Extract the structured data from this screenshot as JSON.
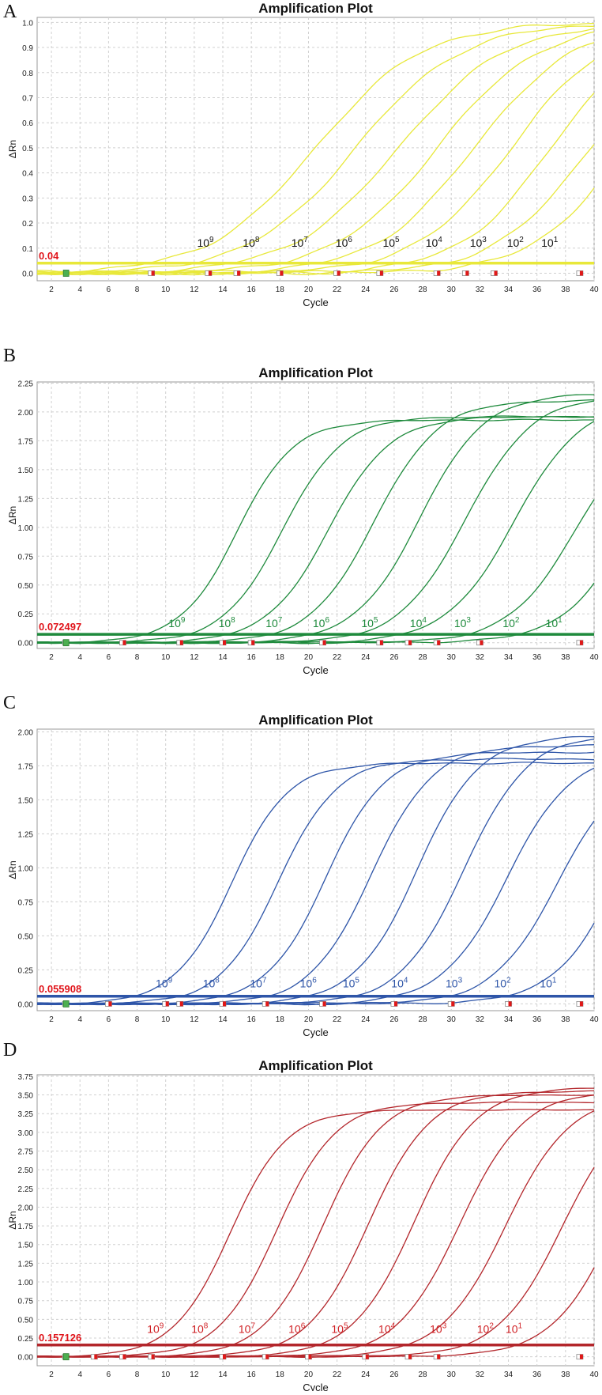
{
  "chart_data": [
    {
      "panel": "A",
      "type": "line",
      "title": "Amplification Plot",
      "xlabel": "Cycle",
      "ylabel": "ΔRn",
      "color": "#e8e83a",
      "label_color": "#111111",
      "threshold": 0.04,
      "threshold_label": "0.04",
      "ylim": [
        -0.03,
        1.02
      ],
      "yticks": [
        "0.0",
        "0.1",
        "0.2",
        "0.3",
        "0.4",
        "0.5",
        "0.6",
        "0.7",
        "0.8",
        "0.9",
        "1.0"
      ],
      "ytick_values": [
        0,
        0.1,
        0.2,
        0.3,
        0.4,
        0.5,
        0.6,
        0.7,
        0.8,
        0.9,
        1.0
      ],
      "xlim": [
        1,
        40
      ],
      "xticks": [
        "2",
        "4",
        "6",
        "8",
        "10",
        "12",
        "14",
        "16",
        "18",
        "20",
        "22",
        "24",
        "26",
        "28",
        "30",
        "32",
        "34",
        "36",
        "38",
        "40"
      ],
      "dilution_labels": [
        {
          "base": "10",
          "exp": "9",
          "x": 12.2
        },
        {
          "base": "10",
          "exp": "8",
          "x": 15.4
        },
        {
          "base": "10",
          "exp": "7",
          "x": 18.8
        },
        {
          "base": "10",
          "exp": "6",
          "x": 21.9
        },
        {
          "base": "10",
          "exp": "5",
          "x": 25.2
        },
        {
          "base": "10",
          "exp": "4",
          "x": 28.2
        },
        {
          "base": "10",
          "exp": "3",
          "x": 31.3
        },
        {
          "base": "10",
          "exp": "2",
          "x": 33.9
        },
        {
          "base": "10",
          "exp": "1",
          "x": 36.3
        }
      ],
      "label_y": 0.1,
      "series": [
        {
          "name": "10^9",
          "midpoint": 20.5,
          "slope": 0.27,
          "plateau": 1.0
        },
        {
          "name": "10^8",
          "midpoint": 23.3,
          "slope": 0.27,
          "plateau": 1.0
        },
        {
          "name": "10^7",
          "midpoint": 26.3,
          "slope": 0.27,
          "plateau": 1.0
        },
        {
          "name": "10^6",
          "midpoint": 29.0,
          "slope": 0.28,
          "plateau": 1.0
        },
        {
          "name": "10^5",
          "midpoint": 31.6,
          "slope": 0.29,
          "plateau": 1.0
        },
        {
          "name": "10^4",
          "midpoint": 34.2,
          "slope": 0.3,
          "plateau": 1.0
        },
        {
          "name": "10^3",
          "midpoint": 37.0,
          "slope": 0.31,
          "plateau": 1.0
        },
        {
          "name": "10^2",
          "midpoint": 39.4,
          "slope": 0.31,
          "plateau": 0.95
        },
        {
          "name": "10^1",
          "midpoint": 41.8,
          "slope": 0.32,
          "plateau": 0.95
        }
      ],
      "markers_x": [
        9,
        13,
        15,
        18,
        22,
        25,
        29,
        31,
        33,
        39
      ]
    },
    {
      "panel": "B",
      "type": "line",
      "title": "Amplification Plot",
      "xlabel": "Cycle",
      "ylabel": "ΔRn",
      "color": "#1e8a3c",
      "label_color": "#1e8a3c",
      "threshold": 0.072497,
      "threshold_label": "0.072497",
      "ylim": [
        -0.05,
        2.26
      ],
      "yticks": [
        "0.00",
        "0.25",
        "0.50",
        "0.75",
        "1.00",
        "1.25",
        "1.50",
        "1.75",
        "2.00",
        "2.25"
      ],
      "ytick_values": [
        0,
        0.25,
        0.5,
        0.75,
        1.0,
        1.25,
        1.5,
        1.75,
        2.0,
        2.25
      ],
      "xlim": [
        1,
        40
      ],
      "xticks": [
        "2",
        "4",
        "6",
        "8",
        "10",
        "12",
        "14",
        "16",
        "18",
        "20",
        "22",
        "24",
        "26",
        "28",
        "30",
        "32",
        "34",
        "36",
        "38",
        "40"
      ],
      "dilution_labels": [
        {
          "base": "10",
          "exp": "9",
          "x": 10.2
        },
        {
          "base": "10",
          "exp": "8",
          "x": 13.7
        },
        {
          "base": "10",
          "exp": "7",
          "x": 17.0
        },
        {
          "base": "10",
          "exp": "6",
          "x": 20.3
        },
        {
          "base": "10",
          "exp": "5",
          "x": 23.7
        },
        {
          "base": "10",
          "exp": "4",
          "x": 27.1
        },
        {
          "base": "10",
          "exp": "3",
          "x": 30.2
        },
        {
          "base": "10",
          "exp": "2",
          "x": 33.6
        },
        {
          "base": "10",
          "exp": "1",
          "x": 36.6
        }
      ],
      "label_y": 0.12,
      "series": [
        {
          "name": "10^9",
          "midpoint": 15.0,
          "slope": 0.5,
          "plateau": 1.93
        },
        {
          "name": "10^8",
          "midpoint": 18.2,
          "slope": 0.48,
          "plateau": 1.96
        },
        {
          "name": "10^7",
          "midpoint": 21.4,
          "slope": 0.46,
          "plateau": 1.96
        },
        {
          "name": "10^6",
          "midpoint": 24.6,
          "slope": 0.45,
          "plateau": 2.1
        },
        {
          "name": "10^5",
          "midpoint": 27.8,
          "slope": 0.44,
          "plateau": 2.16
        },
        {
          "name": "10^4",
          "midpoint": 31.0,
          "slope": 0.43,
          "plateau": 2.14
        },
        {
          "name": "10^3",
          "midpoint": 34.4,
          "slope": 0.42,
          "plateau": 2.1
        },
        {
          "name": "10^2",
          "midpoint": 38.8,
          "slope": 0.42,
          "plateau": 2.0
        },
        {
          "name": "10^1",
          "midpoint": 42.5,
          "slope": 0.42,
          "plateau": 2.0
        }
      ],
      "markers_x": [
        3,
        7,
        11,
        14,
        16,
        21,
        25,
        27,
        29,
        32,
        39
      ]
    },
    {
      "panel": "C",
      "type": "line",
      "title": "Amplification Plot",
      "xlabel": "Cycle",
      "ylabel": "ΔRn",
      "color": "#2e55a8",
      "label_color": "#2e55a8",
      "threshold": 0.055908,
      "threshold_label": "0.055908",
      "ylim": [
        -0.05,
        2.02
      ],
      "yticks": [
        "0.00",
        "0.25",
        "0.50",
        "0.75",
        "1.00",
        "1.25",
        "1.50",
        "1.75",
        "2.00"
      ],
      "ytick_values": [
        0,
        0.25,
        0.5,
        0.75,
        1.0,
        1.25,
        1.5,
        1.75,
        2.0
      ],
      "xlim": [
        1,
        40
      ],
      "xticks": [
        "2",
        "4",
        "6",
        "8",
        "10",
        "12",
        "14",
        "16",
        "18",
        "20",
        "22",
        "24",
        "26",
        "28",
        "30",
        "32",
        "34",
        "36",
        "38",
        "40"
      ],
      "dilution_labels": [
        {
          "base": "10",
          "exp": "9",
          "x": 9.3
        },
        {
          "base": "10",
          "exp": "8",
          "x": 12.6
        },
        {
          "base": "10",
          "exp": "7",
          "x": 15.9
        },
        {
          "base": "10",
          "exp": "6",
          "x": 19.4
        },
        {
          "base": "10",
          "exp": "5",
          "x": 22.4
        },
        {
          "base": "10",
          "exp": "4",
          "x": 25.8
        },
        {
          "base": "10",
          "exp": "3",
          "x": 29.6
        },
        {
          "base": "10",
          "exp": "2",
          "x": 33.0
        },
        {
          "base": "10",
          "exp": "1",
          "x": 36.2
        }
      ],
      "label_y": 0.11,
      "series": [
        {
          "name": "10^9",
          "midpoint": 14.6,
          "slope": 0.5,
          "plateau": 1.77
        },
        {
          "name": "10^8",
          "midpoint": 17.9,
          "slope": 0.49,
          "plateau": 1.8
        },
        {
          "name": "10^7",
          "midpoint": 21.2,
          "slope": 0.48,
          "plateau": 1.85
        },
        {
          "name": "10^6",
          "midpoint": 24.4,
          "slope": 0.47,
          "plateau": 1.9
        },
        {
          "name": "10^5",
          "midpoint": 27.6,
          "slope": 0.46,
          "plateau": 1.97
        },
        {
          "name": "10^4",
          "midpoint": 30.9,
          "slope": 0.45,
          "plateau": 1.98
        },
        {
          "name": "10^3",
          "midpoint": 33.9,
          "slope": 0.44,
          "plateau": 1.85
        },
        {
          "name": "10^2",
          "midpoint": 37.5,
          "slope": 0.44,
          "plateau": 1.8
        },
        {
          "name": "10^1",
          "midpoint": 41.6,
          "slope": 0.44,
          "plateau": 1.8
        }
      ],
      "markers_x": [
        3,
        6,
        10,
        11,
        14,
        17,
        21,
        26,
        30,
        34,
        39
      ]
    },
    {
      "panel": "D",
      "type": "line",
      "title": "Amplification Plot",
      "xlabel": "Cycle",
      "ylabel": "ΔRn",
      "color": "#b3262b",
      "label_color": "#d01f23",
      "threshold": 0.157126,
      "threshold_label": "0.157126",
      "ylim": [
        -0.12,
        3.77
      ],
      "yticks": [
        "0.00",
        "0.25",
        "0.50",
        "0.75",
        "1.00",
        "1.25",
        "1.50",
        "1.75",
        "2.00",
        "2.25",
        "2.50",
        "2.75",
        "3.00",
        "3.25",
        "3.50",
        "3.75"
      ],
      "ytick_values": [
        0,
        0.25,
        0.5,
        0.75,
        1.0,
        1.25,
        1.5,
        1.75,
        2.0,
        2.25,
        2.5,
        2.75,
        3.0,
        3.25,
        3.5,
        3.75
      ],
      "xlim": [
        1,
        40
      ],
      "xticks": [
        "2",
        "4",
        "6",
        "8",
        "10",
        "12",
        "14",
        "16",
        "18",
        "20",
        "22",
        "24",
        "26",
        "28",
        "30",
        "32",
        "34",
        "36",
        "38",
        "40"
      ],
      "dilution_labels": [
        {
          "base": "10",
          "exp": "9",
          "x": 8.7
        },
        {
          "base": "10",
          "exp": "8",
          "x": 11.8
        },
        {
          "base": "10",
          "exp": "7",
          "x": 15.1
        },
        {
          "base": "10",
          "exp": "6",
          "x": 18.6
        },
        {
          "base": "10",
          "exp": "5",
          "x": 21.6
        },
        {
          "base": "10",
          "exp": "4",
          "x": 24.9
        },
        {
          "base": "10",
          "exp": "3",
          "x": 28.5
        },
        {
          "base": "10",
          "exp": "2",
          "x": 31.8
        },
        {
          "base": "10",
          "exp": "1",
          "x": 33.8
        }
      ],
      "label_y": 0.3,
      "series": [
        {
          "name": "10^9",
          "midpoint": 14.5,
          "slope": 0.5,
          "plateau": 3.3
        },
        {
          "name": "10^8",
          "midpoint": 17.8,
          "slope": 0.49,
          "plateau": 3.4
        },
        {
          "name": "10^7",
          "midpoint": 21.0,
          "slope": 0.48,
          "plateau": 3.5
        },
        {
          "name": "10^6",
          "midpoint": 24.2,
          "slope": 0.47,
          "plateau": 3.55
        },
        {
          "name": "10^5",
          "midpoint": 27.4,
          "slope": 0.46,
          "plateau": 3.6
        },
        {
          "name": "10^4",
          "midpoint": 30.6,
          "slope": 0.45,
          "plateau": 3.55
        },
        {
          "name": "10^3",
          "midpoint": 33.8,
          "slope": 0.44,
          "plateau": 3.5
        },
        {
          "name": "10^2",
          "midpoint": 37.8,
          "slope": 0.44,
          "plateau": 3.5
        },
        {
          "name": "10^1",
          "midpoint": 41.5,
          "slope": 0.44,
          "plateau": 3.5
        }
      ],
      "markers_x": [
        3,
        5,
        7,
        9,
        14,
        17,
        20,
        24,
        27,
        29,
        39
      ]
    }
  ]
}
